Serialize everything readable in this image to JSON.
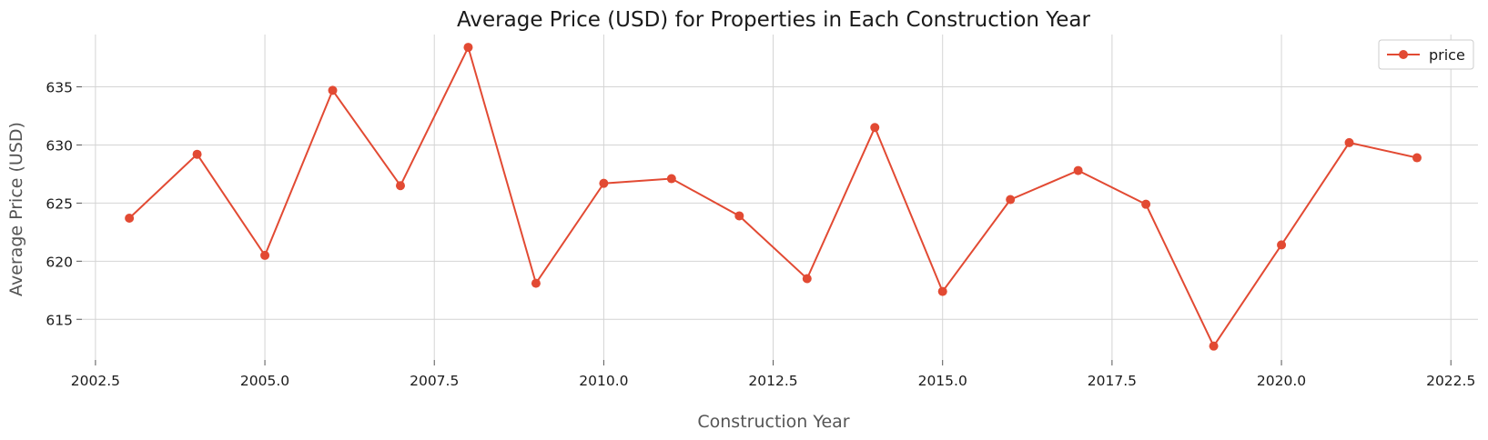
{
  "chart_data": {
    "type": "line",
    "title": "Average Price (USD) for Properties in Each Construction Year",
    "xlabel": "Construction Year",
    "ylabel": "Average Price (USD)",
    "xlim": [
      2002.3,
      2022.9
    ],
    "ylim": [
      611.5,
      639.5
    ],
    "xticks": [
      2002.5,
      2005.0,
      2007.5,
      2010.0,
      2012.5,
      2015.0,
      2017.5,
      2020.0,
      2022.5
    ],
    "xtick_labels": [
      "2002.5",
      "2005.0",
      "2007.5",
      "2010.0",
      "2012.5",
      "2015.0",
      "2017.5",
      "2020.0",
      "2022.5"
    ],
    "yticks": [
      615,
      620,
      625,
      630,
      635
    ],
    "ytick_labels": [
      "615",
      "620",
      "625",
      "630",
      "635"
    ],
    "grid": true,
    "legend_position": "top-right",
    "series": [
      {
        "name": "price",
        "color": "#e24a33",
        "marker": "circle",
        "x": [
          2003,
          2004,
          2005,
          2006,
          2007,
          2008,
          2009,
          2010,
          2011,
          2012,
          2013,
          2014,
          2015,
          2016,
          2017,
          2018,
          2019,
          2020,
          2021,
          2022
        ],
        "y": [
          623.7,
          629.2,
          620.5,
          634.7,
          626.5,
          638.4,
          618.1,
          626.7,
          627.1,
          623.9,
          618.5,
          631.5,
          617.4,
          625.3,
          627.8,
          624.9,
          612.7,
          621.4,
          630.2,
          628.9
        ]
      }
    ]
  }
}
